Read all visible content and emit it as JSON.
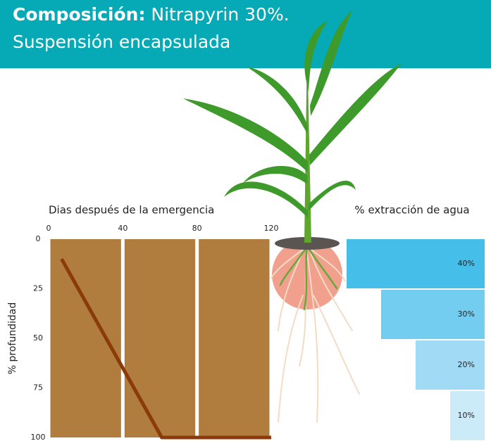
{
  "header": {
    "bold": "Composición:",
    "text": "Nitrapyrin 30%.",
    "line2": "Suspensión encapsulada"
  },
  "chart_data": [
    {
      "type": "line",
      "xlabel": "Dias después de la emergencia",
      "ylabel": "% profundidad",
      "xlim": [
        0,
        120
      ],
      "xticks": [
        0,
        40,
        80,
        120
      ],
      "ylim": [
        0,
        100
      ],
      "yticks": [
        0,
        25,
        50,
        75,
        100
      ],
      "y_inverted": true,
      "grid": true,
      "background": "#b07d3f",
      "series": [
        {
          "color": "#8b3a0a",
          "x": [
            7,
            61,
            120
          ],
          "values": [
            10,
            100,
            100
          ]
        }
      ]
    },
    {
      "type": "bar",
      "orientation": "horizontal",
      "title": "% extracción de agua",
      "values": [
        40,
        30,
        20,
        10
      ],
      "value_labels": [
        "40%",
        "30%",
        "20%",
        "10%"
      ],
      "colors": [
        "#45bfea",
        "#72cdf0",
        "#a0daf4",
        "#cbebf9"
      ]
    }
  ]
}
